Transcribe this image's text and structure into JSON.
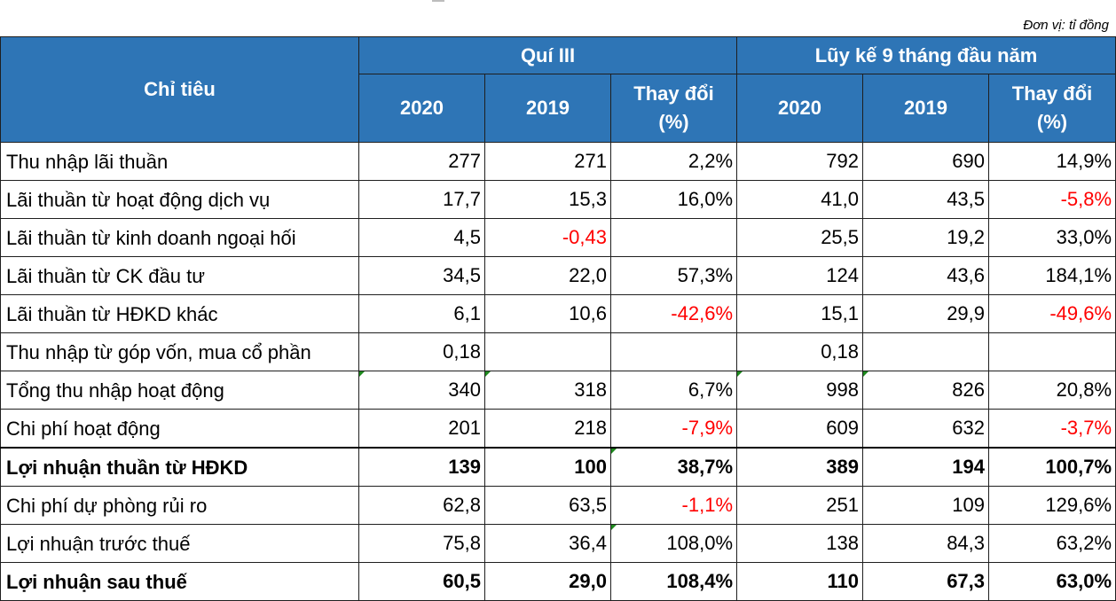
{
  "unit_note": "Đơn vị: tỉ đồng",
  "header": {
    "indicator": "Chỉ tiêu",
    "group_q3": "Quí III",
    "group_9m": "Lũy kế 9 tháng đầu năm",
    "col_2020": "2020",
    "col_2019": "2019",
    "col_change": "Thay đổi (%)"
  },
  "rows": [
    {
      "label": "Thu nhập lãi thuần",
      "q3_2020": "277",
      "q3_2019": "271",
      "q3_change": "2,2%",
      "ytd_2020": "792",
      "ytd_2019": "690",
      "ytd_change": "14,9%"
    },
    {
      "label": "Lãi thuần từ hoạt động dịch vụ",
      "q3_2020": "17,7",
      "q3_2019": "15,3",
      "q3_change": "16,0%",
      "ytd_2020": "41,0",
      "ytd_2019": "43,5",
      "ytd_change": "-5,8%"
    },
    {
      "label": "Lãi thuần từ kinh doanh ngoại hối",
      "q3_2020": "4,5",
      "q3_2019": "-0,43",
      "q3_change": "",
      "ytd_2020": "25,5",
      "ytd_2019": "19,2",
      "ytd_change": "33,0%"
    },
    {
      "label": "Lãi thuần từ CK đầu tư",
      "q3_2020": "34,5",
      "q3_2019": "22,0",
      "q3_change": "57,3%",
      "ytd_2020": "124",
      "ytd_2019": "43,6",
      "ytd_change": "184,1%"
    },
    {
      "label": "Lãi thuần từ HĐKD khác",
      "q3_2020": "6,1",
      "q3_2019": "10,6",
      "q3_change": "-42,6%",
      "ytd_2020": "15,1",
      "ytd_2019": "29,9",
      "ytd_change": "-49,6%"
    },
    {
      "label": "Thu nhập từ góp vốn, mua cổ phần",
      "q3_2020": "0,18",
      "q3_2019": "",
      "q3_change": "",
      "ytd_2020": "0,18",
      "ytd_2019": "",
      "ytd_change": ""
    },
    {
      "label": "Tổng thu nhập hoạt động",
      "q3_2020": "340",
      "q3_2019": "318",
      "q3_change": "6,7%",
      "ytd_2020": "998",
      "ytd_2019": "826",
      "ytd_change": "20,8%"
    },
    {
      "label": "Chi phí hoạt động",
      "q3_2020": "201",
      "q3_2019": "218",
      "q3_change": "-7,9%",
      "ytd_2020": "609",
      "ytd_2019": "632",
      "ytd_change": "-3,7%"
    },
    {
      "label": "Lợi nhuận thuần từ HĐKD",
      "q3_2020": "139",
      "q3_2019": "100",
      "q3_change": "38,7%",
      "ytd_2020": "389",
      "ytd_2019": "194",
      "ytd_change": "100,7%"
    },
    {
      "label": "Chi phí dự phòng rủi ro",
      "q3_2020": "62,8",
      "q3_2019": "63,5",
      "q3_change": "-1,1%",
      "ytd_2020": "251",
      "ytd_2019": "109",
      "ytd_change": "129,6%"
    },
    {
      "label": "Lợi nhuận trước thuế",
      "q3_2020": "75,8",
      "q3_2019": "36,4",
      "q3_change": "108,0%",
      "ytd_2020": "138",
      "ytd_2019": "84,3",
      "ytd_change": "63,2%"
    },
    {
      "label": "Lợi nhuận sau thuế",
      "q3_2020": "60,5",
      "q3_2019": "29,0",
      "q3_change": "108,4%",
      "ytd_2020": "110",
      "ytd_2019": "67,3",
      "ytd_change": "63,0%"
    }
  ],
  "colors": {
    "header_bg": "#2e75b6",
    "negative": "#ff0000",
    "error_marker": "#1e8a1e"
  }
}
